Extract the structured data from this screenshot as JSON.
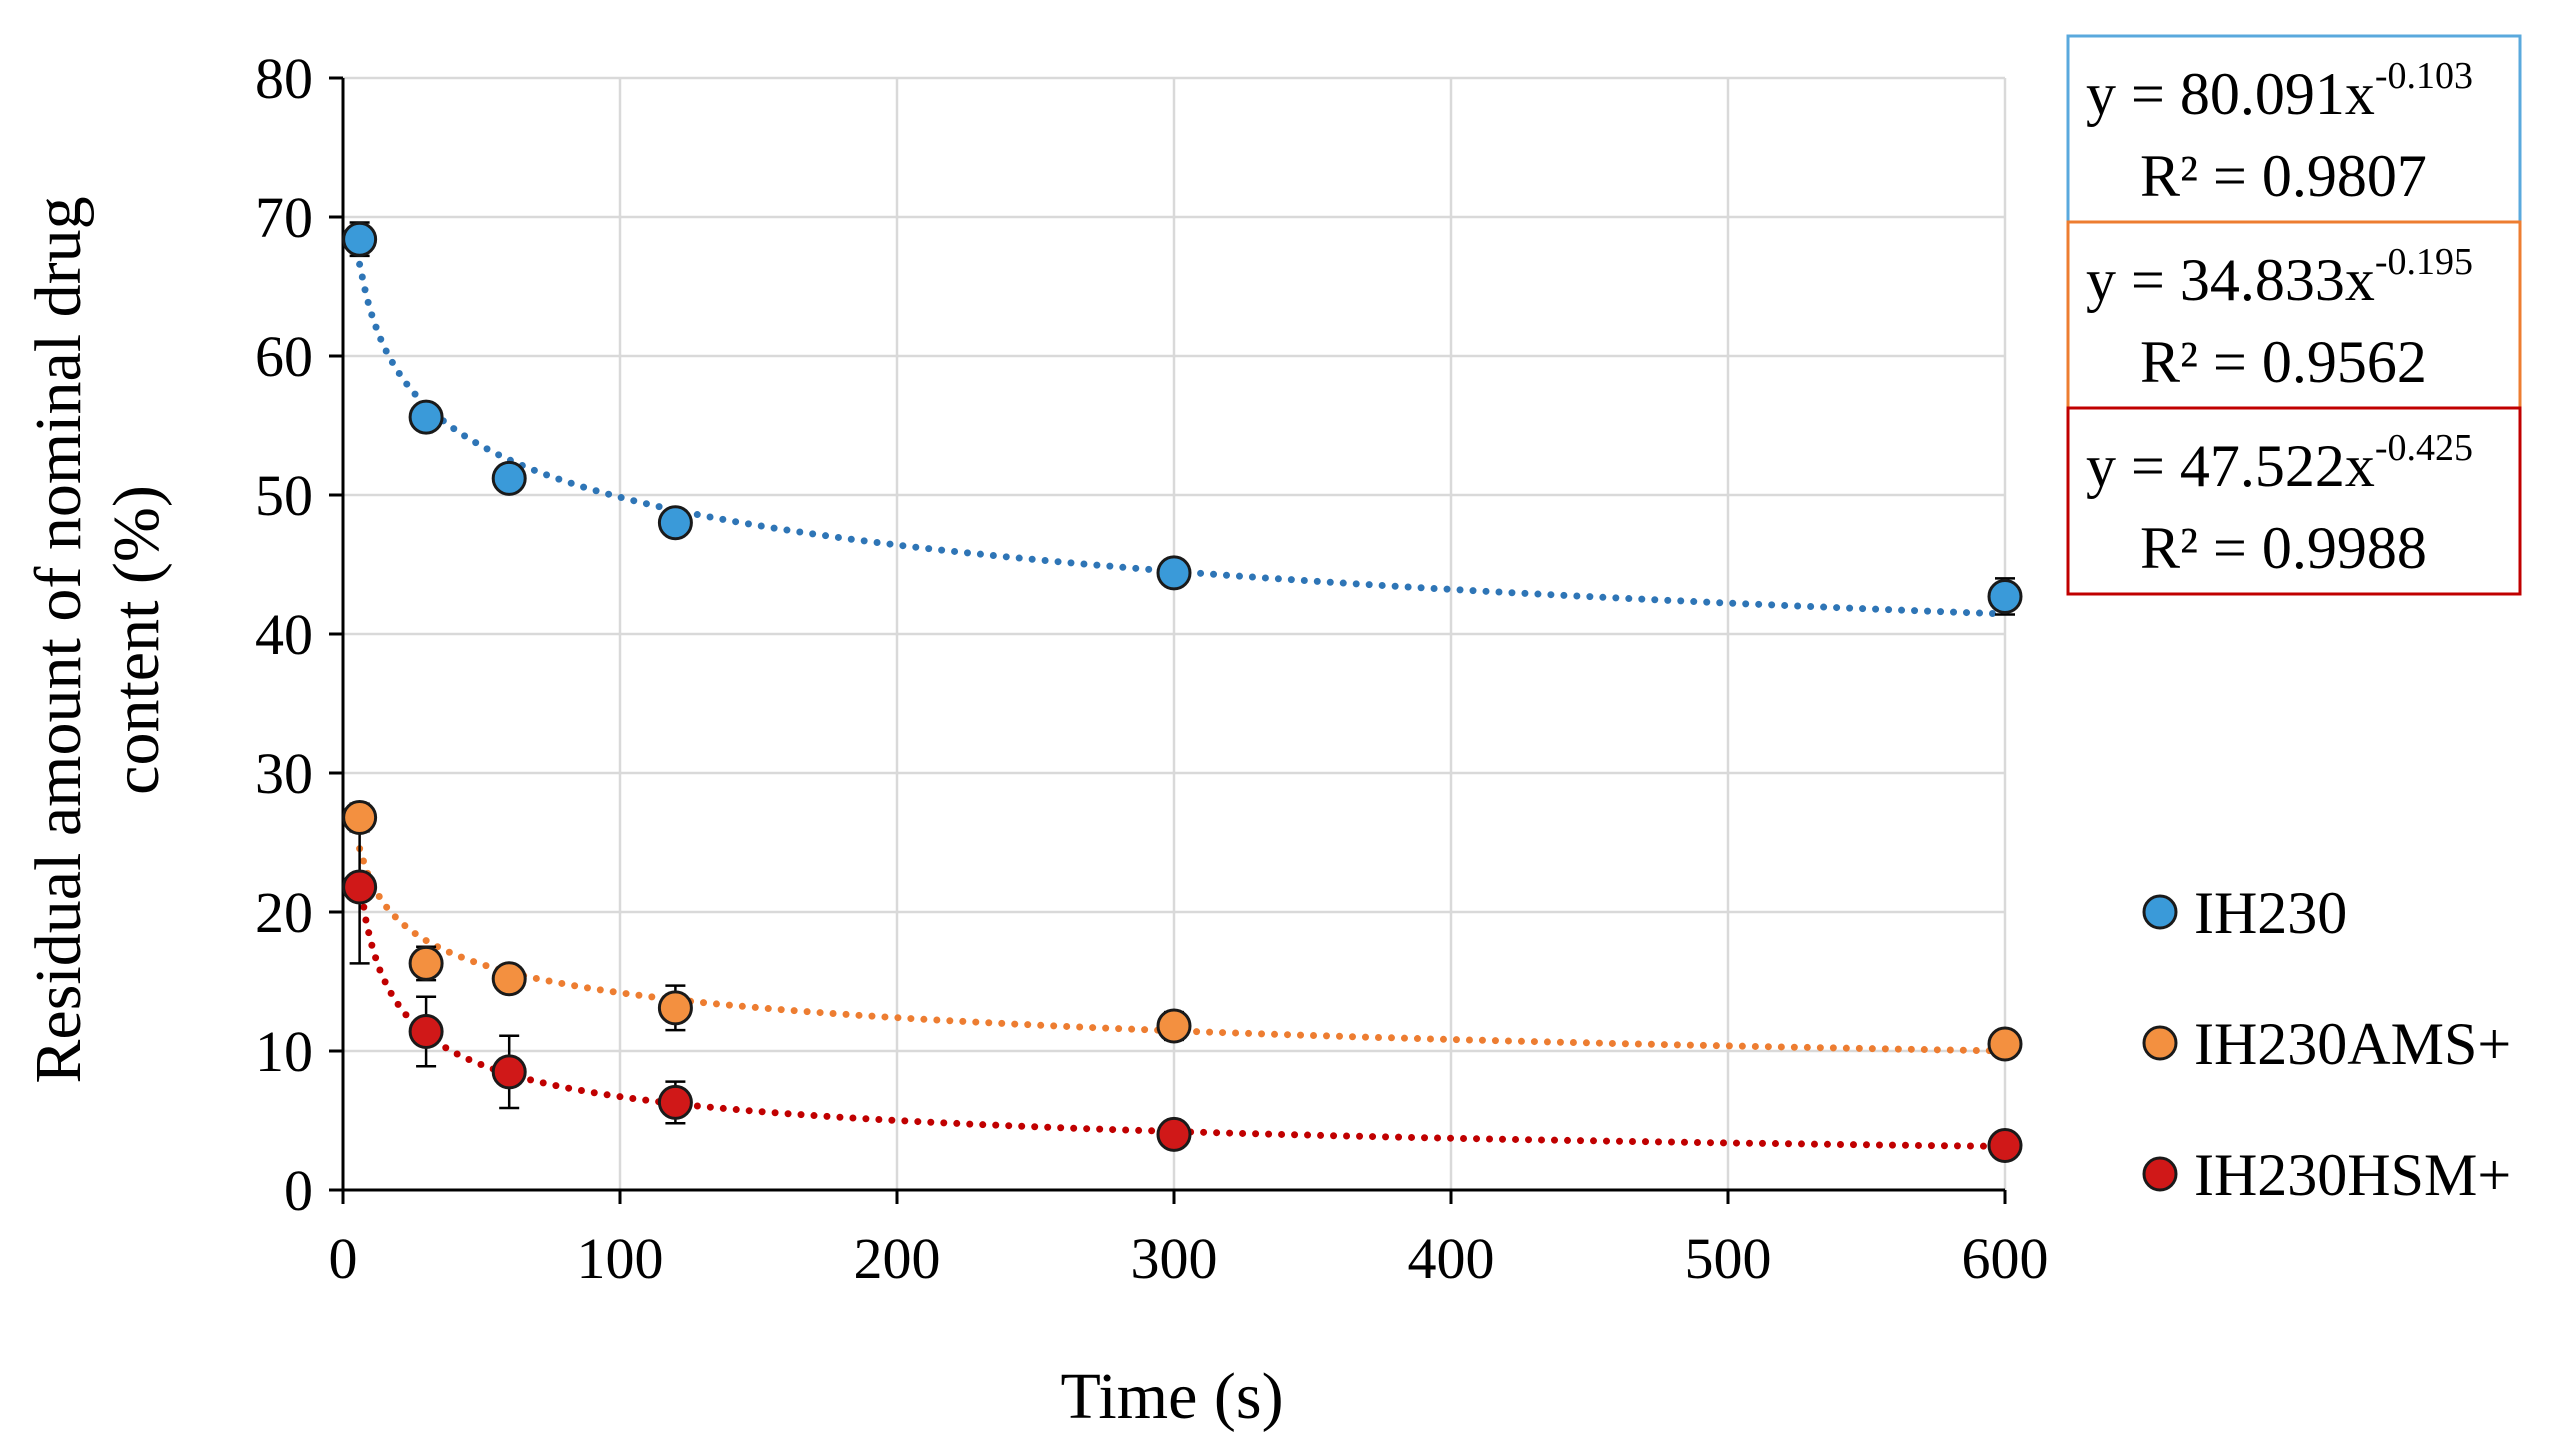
{
  "chart_data": {
    "type": "scatter",
    "xlabel": "Time (s)",
    "ylabel_line1": "Residual amount of nominal drug",
    "ylabel_line2": "content (%)",
    "xlim": [
      0,
      600
    ],
    "ylim": [
      0,
      80
    ],
    "xticks": [
      0,
      100,
      200,
      300,
      400,
      500,
      600
    ],
    "yticks": [
      0,
      10,
      20,
      30,
      40,
      50,
      60,
      70,
      80
    ],
    "grid": true,
    "legend_position": "right",
    "series": [
      {
        "name": "IH230",
        "color": "#3a9ad9",
        "trend_color": "#2e75b6",
        "x": [
          6,
          30,
          60,
          120,
          300,
          600
        ],
        "y": [
          68.4,
          55.6,
          51.2,
          48.0,
          44.4,
          42.7
        ],
        "err": [
          1.2,
          0.8,
          0.6,
          0.6,
          0.6,
          1.3
        ],
        "fit": {
          "type": "power",
          "a": 80.091,
          "b": -0.103,
          "r2": "0.9807"
        },
        "equation_main": "y = 80.091x",
        "equation_exp": "-0.103",
        "r2_label": "R² = 0.9807",
        "box_color": "#5aa9dd"
      },
      {
        "name": "IH230AMS+",
        "color": "#f39040",
        "trend_color": "#ed7d31",
        "x": [
          6,
          30,
          60,
          120,
          300,
          600
        ],
        "y": [
          26.8,
          16.3,
          15.2,
          13.1,
          11.8,
          10.5
        ],
        "err": [
          1.0,
          1.2,
          0.8,
          1.6,
          1.0,
          0.6
        ],
        "fit": {
          "type": "power",
          "a": 34.833,
          "b": -0.195,
          "r2": "0.9562"
        },
        "equation_main": "y = 34.833x",
        "equation_exp": "-0.195",
        "r2_label": "R² = 0.9562",
        "box_color": "#ed7d31"
      },
      {
        "name": "IH230HSM+",
        "color": "#d01818",
        "trend_color": "#c00000",
        "x": [
          6,
          30,
          60,
          120,
          300,
          600
        ],
        "y": [
          21.8,
          11.4,
          8.5,
          6.3,
          4.0,
          3.2
        ],
        "err": [
          5.5,
          2.5,
          2.6,
          1.5,
          0.5,
          0.4
        ],
        "fit": {
          "type": "power",
          "a": 47.522,
          "b": -0.425,
          "r2": "0.9988"
        },
        "equation_main": "y = 47.522x",
        "equation_exp": "-0.425",
        "r2_label": "R² = 0.9988",
        "box_color": "#c00000"
      }
    ]
  }
}
